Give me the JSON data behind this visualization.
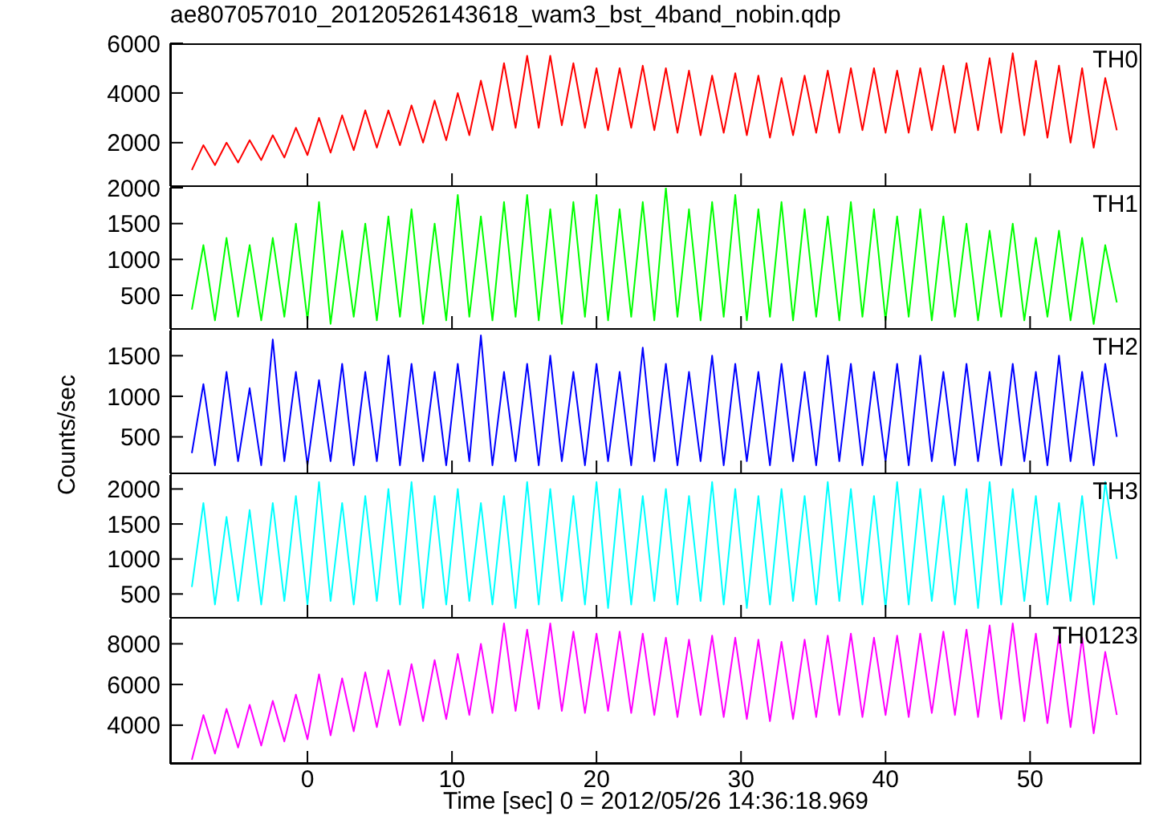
{
  "chart_data": [
    {
      "type": "line",
      "title": "ae807057010_20120526143618_wam3_bst_4band_nobin.qdp",
      "xlim": [
        -9.5,
        57.7
      ],
      "xticks": [
        0,
        10,
        20,
        30,
        40,
        50
      ],
      "ylim": [
        250,
        6000
      ],
      "yticks": [
        2000,
        4000,
        6000
      ],
      "tick_labels": "y",
      "legend": false,
      "marker": "none",
      "line_style": "solid",
      "x": [
        -8,
        -7.2,
        -6.4,
        -5.6,
        -4.8,
        -4,
        -3.2,
        -2.4,
        -1.6,
        -0.8,
        0,
        0.8,
        1.6,
        2.4,
        3.2,
        4,
        4.8,
        5.6,
        6.4,
        7.2,
        8,
        8.8,
        9.6,
        10.4,
        11.2,
        12,
        12.8,
        13.6,
        14.4,
        15.2,
        16,
        16.8,
        17.6,
        18.4,
        19.2,
        20,
        20.8,
        21.6,
        22.4,
        23.2,
        24,
        24.8,
        25.6,
        26.4,
        27.2,
        28,
        28.8,
        29.6,
        30.4,
        31.2,
        32,
        32.8,
        33.6,
        34.4,
        35.2,
        36,
        36.8,
        37.6,
        38.4,
        39.2,
        40,
        40.8,
        41.6,
        42.4,
        43.2,
        44,
        44.8,
        45.6,
        46.4,
        47.2,
        48,
        48.8,
        49.6,
        50.4,
        51.2,
        52,
        52.8,
        53.6,
        54.4,
        55.2,
        56
      ],
      "series": [
        {
          "name": "TH0",
          "color": "#ff0000",
          "values": [
            900,
            1900,
            1100,
            2000,
            1200,
            2100,
            1300,
            2300,
            1400,
            2600,
            1500,
            3000,
            1600,
            3100,
            1700,
            3300,
            1800,
            3300,
            1900,
            3500,
            2000,
            3700,
            2100,
            4000,
            2300,
            4500,
            2500,
            5200,
            2600,
            5500,
            2600,
            5500,
            2700,
            5200,
            2600,
            5000,
            2500,
            5000,
            2600,
            5100,
            2500,
            5000,
            2400,
            4900,
            2300,
            4700,
            2400,
            4800,
            2300,
            4700,
            2200,
            4600,
            2300,
            4700,
            2400,
            4900,
            2400,
            5000,
            2500,
            5000,
            2400,
            4900,
            2400,
            5000,
            2500,
            5100,
            2400,
            5200,
            2500,
            5400,
            2400,
            5600,
            2300,
            5300,
            2200,
            5100,
            2000,
            5000,
            1800,
            4600,
            2500
          ]
        }
      ]
    },
    {
      "type": "line",
      "xlim": [
        -9.5,
        57.7
      ],
      "xticks": [
        0,
        10,
        20,
        30,
        40,
        50
      ],
      "ylim": [
        30,
        2000
      ],
      "yticks": [
        500,
        1000,
        1500,
        2000
      ],
      "tick_labels": "y",
      "legend": false,
      "marker": "none",
      "line_style": "solid",
      "x": [
        -8,
        -7.2,
        -6.4,
        -5.6,
        -4.8,
        -4,
        -3.2,
        -2.4,
        -1.6,
        -0.8,
        0,
        0.8,
        1.6,
        2.4,
        3.2,
        4,
        4.8,
        5.6,
        6.4,
        7.2,
        8,
        8.8,
        9.6,
        10.4,
        11.2,
        12,
        12.8,
        13.6,
        14.4,
        15.2,
        16,
        16.8,
        17.6,
        18.4,
        19.2,
        20,
        20.8,
        21.6,
        22.4,
        23.2,
        24,
        24.8,
        25.6,
        26.4,
        27.2,
        28,
        28.8,
        29.6,
        30.4,
        31.2,
        32,
        32.8,
        33.6,
        34.4,
        35.2,
        36,
        36.8,
        37.6,
        38.4,
        39.2,
        40,
        40.8,
        41.6,
        42.4,
        43.2,
        44,
        44.8,
        45.6,
        46.4,
        47.2,
        48,
        48.8,
        49.6,
        50.4,
        51.2,
        52,
        52.8,
        53.6,
        54.4,
        55.2,
        56
      ],
      "series": [
        {
          "name": "TH1",
          "color": "#00ff00",
          "values": [
            300,
            1200,
            150,
            1300,
            200,
            1200,
            150,
            1300,
            200,
            1500,
            150,
            1800,
            100,
            1400,
            200,
            1500,
            150,
            1600,
            200,
            1700,
            100,
            1500,
            150,
            1900,
            200,
            1600,
            150,
            1800,
            200,
            1900,
            150,
            1700,
            100,
            1800,
            200,
            1900,
            150,
            1700,
            200,
            1800,
            150,
            2000,
            200,
            1700,
            150,
            1800,
            200,
            1900,
            150,
            1700,
            200,
            1800,
            150,
            1700,
            200,
            1600,
            150,
            1800,
            200,
            1700,
            150,
            1600,
            200,
            1700,
            150,
            1600,
            200,
            1500,
            150,
            1400,
            200,
            1500,
            150,
            1300,
            200,
            1400,
            150,
            1300,
            100,
            1200,
            400
          ]
        }
      ]
    },
    {
      "type": "line",
      "ylabel": "Counts/sec",
      "xlim": [
        -9.5,
        57.7
      ],
      "xticks": [
        0,
        10,
        20,
        30,
        40,
        50
      ],
      "ylim": [
        50,
        1810
      ],
      "yticks": [
        500,
        1000,
        1500
      ],
      "tick_labels": "y",
      "legend": false,
      "marker": "none",
      "line_style": "solid",
      "x": [
        -8,
        -7.2,
        -6.4,
        -5.6,
        -4.8,
        -4,
        -3.2,
        -2.4,
        -1.6,
        -0.8,
        0,
        0.8,
        1.6,
        2.4,
        3.2,
        4,
        4.8,
        5.6,
        6.4,
        7.2,
        8,
        8.8,
        9.6,
        10.4,
        11.2,
        12,
        12.8,
        13.6,
        14.4,
        15.2,
        16,
        16.8,
        17.6,
        18.4,
        19.2,
        20,
        20.8,
        21.6,
        22.4,
        23.2,
        24,
        24.8,
        25.6,
        26.4,
        27.2,
        28,
        28.8,
        29.6,
        30.4,
        31.2,
        32,
        32.8,
        33.6,
        34.4,
        35.2,
        36,
        36.8,
        37.6,
        38.4,
        39.2,
        40,
        40.8,
        41.6,
        42.4,
        43.2,
        44,
        44.8,
        45.6,
        46.4,
        47.2,
        48,
        48.8,
        49.6,
        50.4,
        51.2,
        52,
        52.8,
        53.6,
        54.4,
        55.2,
        56
      ],
      "series": [
        {
          "name": "TH2",
          "color": "#0000ff",
          "values": [
            300,
            1150,
            150,
            1300,
            200,
            1100,
            150,
            1700,
            200,
            1300,
            150,
            1200,
            200,
            1400,
            150,
            1300,
            200,
            1500,
            150,
            1400,
            200,
            1300,
            150,
            1400,
            200,
            1750,
            150,
            1300,
            200,
            1400,
            150,
            1500,
            200,
            1300,
            150,
            1400,
            200,
            1300,
            150,
            1600,
            200,
            1400,
            150,
            1300,
            200,
            1500,
            150,
            1400,
            200,
            1300,
            150,
            1400,
            200,
            1300,
            150,
            1500,
            200,
            1400,
            150,
            1300,
            200,
            1400,
            150,
            1500,
            200,
            1300,
            150,
            1400,
            200,
            1300,
            150,
            1400,
            200,
            1300,
            150,
            1500,
            200,
            1300,
            150,
            1400,
            500
          ]
        }
      ]
    },
    {
      "type": "line",
      "xlim": [
        -9.5,
        57.7
      ],
      "xticks": [
        0,
        10,
        20,
        30,
        40,
        50
      ],
      "ylim": [
        160,
        2200
      ],
      "yticks": [
        500,
        1000,
        1500,
        2000
      ],
      "tick_labels": "y",
      "legend": false,
      "marker": "none",
      "line_style": "solid",
      "x": [
        -8,
        -7.2,
        -6.4,
        -5.6,
        -4.8,
        -4,
        -3.2,
        -2.4,
        -1.6,
        -0.8,
        0,
        0.8,
        1.6,
        2.4,
        3.2,
        4,
        4.8,
        5.6,
        6.4,
        7.2,
        8,
        8.8,
        9.6,
        10.4,
        11.2,
        12,
        12.8,
        13.6,
        14.4,
        15.2,
        16,
        16.8,
        17.6,
        18.4,
        19.2,
        20,
        20.8,
        21.6,
        22.4,
        23.2,
        24,
        24.8,
        25.6,
        26.4,
        27.2,
        28,
        28.8,
        29.6,
        30.4,
        31.2,
        32,
        32.8,
        33.6,
        34.4,
        35.2,
        36,
        36.8,
        37.6,
        38.4,
        39.2,
        40,
        40.8,
        41.6,
        42.4,
        43.2,
        44,
        44.8,
        45.6,
        46.4,
        47.2,
        48,
        48.8,
        49.6,
        50.4,
        51.2,
        52,
        52.8,
        53.6,
        54.4,
        55.2,
        56
      ],
      "series": [
        {
          "name": "TH3",
          "color": "#00ffff",
          "values": [
            600,
            1800,
            350,
            1600,
            400,
            1700,
            350,
            1800,
            400,
            1900,
            350,
            2100,
            400,
            1800,
            350,
            1900,
            400,
            2000,
            350,
            2100,
            300,
            1900,
            350,
            2000,
            400,
            1800,
            350,
            1900,
            300,
            2100,
            350,
            2000,
            400,
            1900,
            350,
            2100,
            300,
            2000,
            350,
            1900,
            400,
            2000,
            350,
            1900,
            400,
            2100,
            350,
            2000,
            300,
            1900,
            350,
            2000,
            400,
            1900,
            350,
            2100,
            400,
            2000,
            350,
            1900,
            300,
            2100,
            350,
            2000,
            400,
            1900,
            350,
            2000,
            300,
            2100,
            350,
            2000,
            400,
            1900,
            350,
            1800,
            400,
            1900,
            350,
            2100,
            1000
          ]
        }
      ]
    },
    {
      "type": "line",
      "xlabel": "Time [sec] 0 = 2012/05/26 14:36:18.969",
      "xlim": [
        -9.5,
        57.7
      ],
      "xticks": [
        0,
        10,
        20,
        30,
        40,
        50
      ],
      "ylim": [
        2100,
        9200
      ],
      "yticks": [
        4000,
        6000,
        8000
      ],
      "legend": false,
      "marker": "none",
      "line_style": "solid",
      "x": [
        -8,
        -7.2,
        -6.4,
        -5.6,
        -4.8,
        -4,
        -3.2,
        -2.4,
        -1.6,
        -0.8,
        0,
        0.8,
        1.6,
        2.4,
        3.2,
        4,
        4.8,
        5.6,
        6.4,
        7.2,
        8,
        8.8,
        9.6,
        10.4,
        11.2,
        12,
        12.8,
        13.6,
        14.4,
        15.2,
        16,
        16.8,
        17.6,
        18.4,
        19.2,
        20,
        20.8,
        21.6,
        22.4,
        23.2,
        24,
        24.8,
        25.6,
        26.4,
        27.2,
        28,
        28.8,
        29.6,
        30.4,
        31.2,
        32,
        32.8,
        33.6,
        34.4,
        35.2,
        36,
        36.8,
        37.6,
        38.4,
        39.2,
        40,
        40.8,
        41.6,
        42.4,
        43.2,
        44,
        44.8,
        45.6,
        46.4,
        47.2,
        48,
        48.8,
        49.6,
        50.4,
        51.2,
        52,
        52.8,
        53.6,
        54.4,
        55.2,
        56
      ],
      "series": [
        {
          "name": "TH0123",
          "color": "#ff00ff",
          "values": [
            2300,
            4500,
            2600,
            4800,
            2900,
            5000,
            3000,
            5200,
            3200,
            5500,
            3300,
            6500,
            3500,
            6300,
            3700,
            6600,
            3900,
            6700,
            4000,
            7000,
            4200,
            7200,
            4300,
            7500,
            4500,
            8000,
            4600,
            9000,
            4700,
            8700,
            4800,
            9000,
            4700,
            8600,
            4600,
            8500,
            4700,
            8600,
            4600,
            8500,
            4500,
            8300,
            4400,
            8200,
            4500,
            8400,
            4400,
            8300,
            4300,
            8200,
            4200,
            8100,
            4300,
            8200,
            4400,
            8400,
            4500,
            8500,
            4400,
            8300,
            4500,
            8400,
            4400,
            8500,
            4600,
            8600,
            4500,
            8700,
            4400,
            8900,
            4300,
            9000,
            4200,
            8500,
            4100,
            8400,
            3900,
            8300,
            3600,
            7600,
            4500
          ]
        }
      ]
    }
  ]
}
